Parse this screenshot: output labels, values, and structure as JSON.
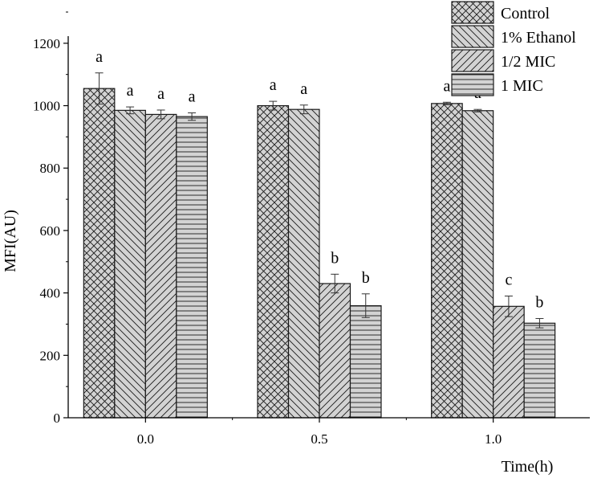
{
  "chart_data": {
    "type": "bar",
    "xlabel": "Time(h)",
    "ylabel": "MFI(AU)",
    "ylim": [
      0,
      1300
    ],
    "yticks": [
      0,
      200,
      400,
      600,
      800,
      1000,
      1200
    ],
    "categories": [
      "0.0",
      "0.5",
      "1.0"
    ],
    "legend_position": "top-right",
    "series": [
      {
        "name": "Control",
        "pattern": "crosshatch",
        "values": [
          1055,
          1000,
          1007
        ],
        "errors": [
          50,
          14,
          4
        ],
        "labels": [
          "a",
          "a",
          "a"
        ]
      },
      {
        "name": "1% Ethanol",
        "pattern": "backslash",
        "values": [
          985,
          988,
          984
        ],
        "errors": [
          11,
          14,
          4
        ],
        "labels": [
          "a",
          "a",
          "a"
        ]
      },
      {
        "name": "1/2 MIC",
        "pattern": "forwardslash",
        "values": [
          972,
          430,
          357
        ],
        "errors": [
          14,
          30,
          33
        ],
        "labels": [
          "a",
          "b",
          "c"
        ]
      },
      {
        "name": "1 MIC",
        "pattern": "horizontal",
        "values": [
          965,
          359,
          303
        ],
        "errors": [
          12,
          38,
          15
        ],
        "labels": [
          "a",
          "b",
          "b"
        ]
      }
    ],
    "colors": {
      "fill": "#d3d3d3",
      "stroke": "#1a1a1a",
      "pattern": "#1a1a1a"
    }
  }
}
